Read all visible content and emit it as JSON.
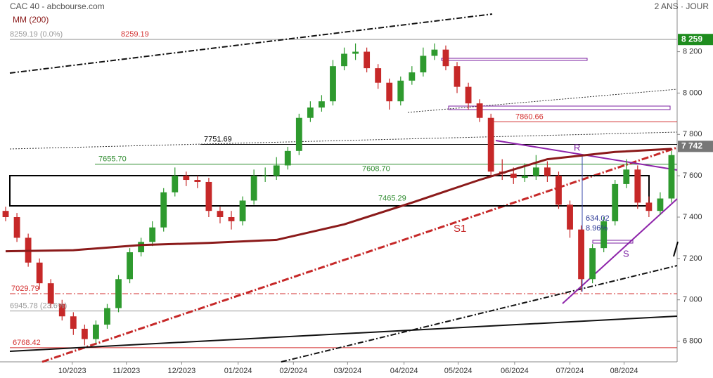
{
  "chart_data": {
    "type": "candlestick",
    "title": "CAC 40 - abcbourse.com",
    "period": "2 ANS · JOUR",
    "up_color": "#2e9a2e",
    "down_color": "#c62828",
    "x": [
      0,
      1,
      2,
      3,
      4,
      5,
      6,
      7,
      8,
      9,
      10,
      11,
      12,
      13,
      14,
      15,
      16,
      17,
      18,
      19,
      20,
      21,
      22,
      23,
      24,
      25,
      26,
      27,
      28,
      29,
      30,
      31,
      32,
      33,
      34,
      35,
      36,
      37,
      38,
      39,
      40,
      41,
      42,
      43,
      44,
      45,
      46,
      47,
      48,
      49,
      50,
      51,
      52,
      53,
      54,
      55,
      56,
      57,
      58,
      59
    ],
    "open": [
      7430,
      7400,
      7300,
      7180,
      7080,
      6980,
      6920,
      6860,
      6810,
      6880,
      6960,
      7100,
      7230,
      7280,
      7350,
      7520,
      7600,
      7580,
      7570,
      7430,
      7400,
      7380,
      7480,
      7600,
      7600,
      7650,
      7720,
      7880,
      7930,
      7960,
      8130,
      8190,
      8200,
      8120,
      8050,
      7960,
      8060,
      8100,
      8180,
      8210,
      8130,
      8030,
      7950,
      7880,
      7620,
      7610,
      7590,
      7600,
      7640,
      7600,
      7460,
      7340,
      7100,
      7250,
      7380,
      7560,
      7630,
      7470,
      7430,
      7490
    ],
    "high": [
      7450,
      7420,
      7320,
      7200,
      7100,
      7000,
      6940,
      6880,
      6900,
      6980,
      7120,
      7250,
      7300,
      7380,
      7540,
      7640,
      7620,
      7600,
      7590,
      7450,
      7430,
      7500,
      7630,
      7640,
      7690,
      7740,
      7900,
      7960,
      7990,
      8160,
      8220,
      8240,
      8220,
      8140,
      8070,
      8080,
      8130,
      8220,
      8240,
      8230,
      8150,
      8050,
      7970,
      7900,
      7680,
      7640,
      7660,
      7700,
      7670,
      7620,
      7480,
      7360,
      7270,
      7400,
      7580,
      7680,
      7650,
      7500,
      7520,
      7720
    ],
    "low": [
      7380,
      7280,
      7160,
      7050,
      6960,
      6900,
      6830,
      6780,
      6790,
      6860,
      6940,
      7080,
      7210,
      7260,
      7330,
      7500,
      7550,
      7540,
      7400,
      7370,
      7340,
      7360,
      7460,
      7570,
      7580,
      7630,
      7700,
      7860,
      7910,
      7940,
      8110,
      8160,
      8100,
      8020,
      7920,
      7940,
      8040,
      8080,
      8160,
      8110,
      8000,
      7920,
      7860,
      7600,
      7580,
      7560,
      7570,
      7580,
      7570,
      7440,
      7300,
      7040,
      7080,
      7230,
      7360,
      7540,
      7440,
      7400,
      7410,
      7470
    ],
    "close": [
      7400,
      7300,
      7180,
      7080,
      6980,
      6920,
      6860,
      6810,
      6880,
      6960,
      7100,
      7230,
      7280,
      7350,
      7520,
      7600,
      7580,
      7570,
      7430,
      7400,
      7380,
      7480,
      7600,
      7600,
      7650,
      7720,
      7880,
      7930,
      7960,
      8130,
      8190,
      8200,
      8120,
      8050,
      7960,
      8060,
      8100,
      8180,
      8210,
      8130,
      8030,
      7950,
      7880,
      7620,
      7610,
      7590,
      7600,
      7640,
      7600,
      7460,
      7340,
      7100,
      7250,
      7380,
      7560,
      7630,
      7470,
      7430,
      7490,
      7700
    ],
    "xlim": [
      -0.5,
      59.5
    ],
    "xticks": [
      {
        "value": 5.9,
        "label": "10/2023"
      },
      {
        "value": 10.7,
        "label": "11/2023"
      },
      {
        "value": 15.6,
        "label": "12/2023"
      },
      {
        "value": 20.6,
        "label": "01/2024"
      },
      {
        "value": 25.5,
        "label": "02/2024"
      },
      {
        "value": 30.3,
        "label": "03/2024"
      },
      {
        "value": 35.3,
        "label": "04/2024"
      },
      {
        "value": 40.1,
        "label": "05/2024"
      },
      {
        "value": 45.1,
        "label": "06/2024"
      },
      {
        "value": 50.0,
        "label": "07/2024"
      },
      {
        "value": 54.8,
        "label": "08/2024"
      }
    ],
    "ylim": [
      6700,
      8450
    ],
    "yticks": [
      {
        "value": 6800,
        "label": "6 800"
      },
      {
        "value": 7000,
        "label": "7 000"
      },
      {
        "value": 7200,
        "label": "7 200"
      },
      {
        "value": 7400,
        "label": "7 400"
      },
      {
        "value": 7600,
        "label": "7 600"
      },
      {
        "value": 7800,
        "label": "7 800"
      },
      {
        "value": 8000,
        "label": "8 000"
      },
      {
        "value": 8200,
        "label": "8 200"
      }
    ],
    "overlays": [
      {
        "name": "MM (200)",
        "color": "#8b1a1a",
        "x": [
          0,
          6,
          12,
          18,
          24,
          30,
          36,
          42,
          48,
          54,
          59
        ],
        "values": [
          7235,
          7240,
          7265,
          7275,
          7290,
          7365,
          7470,
          7580,
          7680,
          7715,
          7730
        ]
      }
    ],
    "levels": [
      {
        "value": 8259.19,
        "label": "8259.19 (0.0%)",
        "color": "#999999"
      },
      {
        "value": 8259.19,
        "label": "8259.19",
        "color": "#d32f2f"
      },
      {
        "value": 7860.66,
        "label": "7860.66",
        "color": "#d32f2f"
      },
      {
        "value": 7751.69,
        "label": "7751.69",
        "color": "#000000"
      },
      {
        "value": 7655.7,
        "label": "7655.70",
        "color": "#2e8b2e"
      },
      {
        "value": 7608.7,
        "label": "7608.70",
        "color": "#2e8b2e"
      },
      {
        "value": 7465.29,
        "label": "7465.29",
        "color": "#2e8b2e"
      },
      {
        "value": 7029.79,
        "label": "7029.79",
        "color": "#d32f2f"
      },
      {
        "value": 6945.78,
        "label": "6945.78 (23.6%)",
        "color": "#999999"
      },
      {
        "value": 6768.42,
        "label": "6768.42",
        "color": "#d32f2f"
      }
    ],
    "price_labels": [
      {
        "value": 8259,
        "label": "8 259",
        "color": "#1e8c1e"
      },
      {
        "value": 7742,
        "label": "7 742",
        "color": "#777777"
      }
    ],
    "annotations": [
      "S1",
      "R",
      "S",
      "634.02",
      "8.96%"
    ]
  }
}
